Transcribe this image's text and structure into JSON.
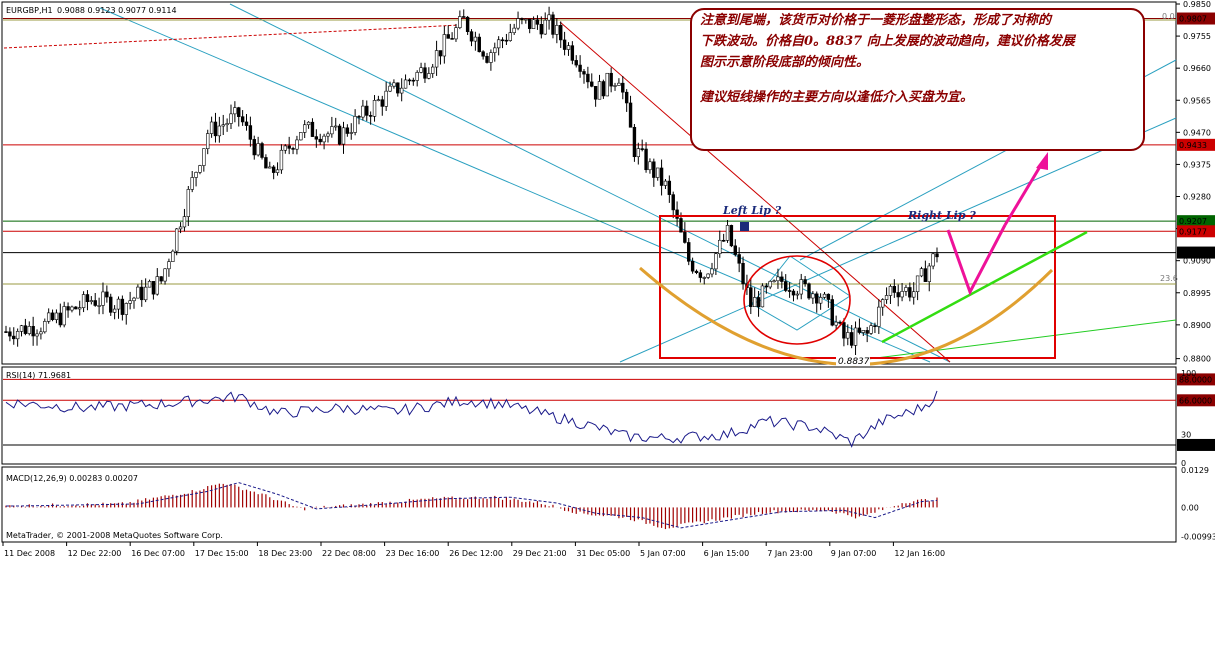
{
  "chart_data": [
    {
      "type": "candlestick",
      "symbol_title": "EURGBP,H1",
      "ohlc_header": "0.9088 0.9123 0.9077 0.9114",
      "x_labels": [
        "11 Dec 2008",
        "12 Dec 22:00",
        "16 Dec 07:00",
        "17 Dec 15:00",
        "18 Dec 23:00",
        "22 Dec 08:00",
        "23 Dec 16:00",
        "26 Dec 12:00",
        "29 Dec 21:00",
        "31 Dec 05:00",
        "5 Jan 07:00",
        "6 Jan 15:00",
        "7 Jan 23:00",
        "9 Jan 07:00",
        "12 Jan 16:00"
      ],
      "y_ticks": [
        "0.9850",
        "0.9755",
        "0.9660",
        "0.9565",
        "0.9470",
        "0.9375",
        "0.9280",
        "0.9185",
        "0.9090",
        "0.8995",
        "0.8900",
        "0.8800"
      ],
      "ylim": [
        0.879,
        0.985
      ],
      "price_key_points": [
        {
          "i": 0,
          "v": 0.888
        },
        {
          "i": 10,
          "v": 0.89
        },
        {
          "i": 22,
          "v": 0.8975
        },
        {
          "i": 30,
          "v": 0.896
        },
        {
          "i": 40,
          "v": 0.903
        },
        {
          "i": 52,
          "v": 0.947
        },
        {
          "i": 60,
          "v": 0.952
        },
        {
          "i": 68,
          "v": 0.934
        },
        {
          "i": 76,
          "v": 0.948
        },
        {
          "i": 86,
          "v": 0.946
        },
        {
          "i": 96,
          "v": 0.956
        },
        {
          "i": 108,
          "v": 0.966
        },
        {
          "i": 118,
          "v": 0.98
        },
        {
          "i": 124,
          "v": 0.97
        },
        {
          "i": 132,
          "v": 0.979
        },
        {
          "i": 140,
          "v": 0.979
        },
        {
          "i": 148,
          "v": 0.968
        },
        {
          "i": 152,
          "v": 0.959
        },
        {
          "i": 158,
          "v": 0.964
        },
        {
          "i": 162,
          "v": 0.942
        },
        {
          "i": 170,
          "v": 0.931
        },
        {
          "i": 176,
          "v": 0.909
        },
        {
          "i": 180,
          "v": 0.905
        },
        {
          "i": 186,
          "v": 0.917
        },
        {
          "i": 192,
          "v": 0.896
        },
        {
          "i": 200,
          "v": 0.903
        },
        {
          "i": 210,
          "v": 0.899
        },
        {
          "i": 216,
          "v": 0.886
        },
        {
          "i": 222,
          "v": 0.887
        },
        {
          "i": 228,
          "v": 0.901
        },
        {
          "i": 234,
          "v": 0.9
        },
        {
          "i": 240,
          "v": 0.9114
        }
      ],
      "hlines": [
        {
          "value": "0.9807",
          "color": "#8b0000"
        },
        {
          "value": "0.9433",
          "color": "#cc0000"
        },
        {
          "value": "0.9207",
          "color": "#006400"
        },
        {
          "value": "0.9177",
          "color": "#cc0000"
        },
        {
          "value": "0.9114",
          "color": "#000000"
        }
      ],
      "fib_labels": [
        "0.0",
        "23.6"
      ],
      "annotations": [
        "Left Lip  ?",
        "Right Lip  ?",
        "0.8837"
      ]
    },
    {
      "type": "line",
      "title": "RSI(14) 71.9681",
      "levels": [
        "88.0000",
        "66.0000",
        "19.0000"
      ],
      "y_ticks": [
        "100",
        "30",
        "0"
      ],
      "ylim": [
        0,
        100
      ],
      "key_points": [
        {
          "i": 0,
          "v": 64
        },
        {
          "i": 20,
          "v": 58
        },
        {
          "i": 40,
          "v": 62
        },
        {
          "i": 60,
          "v": 70
        },
        {
          "i": 70,
          "v": 52
        },
        {
          "i": 86,
          "v": 58
        },
        {
          "i": 100,
          "v": 54
        },
        {
          "i": 118,
          "v": 66
        },
        {
          "i": 128,
          "v": 62
        },
        {
          "i": 140,
          "v": 50
        },
        {
          "i": 150,
          "v": 40
        },
        {
          "i": 160,
          "v": 28
        },
        {
          "i": 170,
          "v": 26
        },
        {
          "i": 186,
          "v": 30
        },
        {
          "i": 196,
          "v": 44
        },
        {
          "i": 208,
          "v": 38
        },
        {
          "i": 218,
          "v": 22
        },
        {
          "i": 226,
          "v": 44
        },
        {
          "i": 236,
          "v": 58
        },
        {
          "i": 240,
          "v": 72
        }
      ]
    },
    {
      "type": "histogram",
      "title": "MACD(12,26,9) 0.00283 0.00207",
      "y_ticks": [
        "0.0129",
        "0.00",
        "-0.00993"
      ],
      "ylim": [
        -0.0115,
        0.0135
      ],
      "key_points": [
        {
          "i": 0,
          "v": 0.0005
        },
        {
          "i": 30,
          "v": 0.0012
        },
        {
          "i": 48,
          "v": 0.0055
        },
        {
          "i": 56,
          "v": 0.0085
        },
        {
          "i": 66,
          "v": 0.0045
        },
        {
          "i": 76,
          "v": -0.0005
        },
        {
          "i": 92,
          "v": 0.001
        },
        {
          "i": 110,
          "v": 0.003
        },
        {
          "i": 126,
          "v": 0.0035
        },
        {
          "i": 138,
          "v": 0.0015
        },
        {
          "i": 148,
          "v": -0.002
        },
        {
          "i": 160,
          "v": -0.0035
        },
        {
          "i": 170,
          "v": -0.007
        },
        {
          "i": 184,
          "v": -0.004
        },
        {
          "i": 196,
          "v": -0.0015
        },
        {
          "i": 212,
          "v": -0.001
        },
        {
          "i": 220,
          "v": -0.0035
        },
        {
          "i": 232,
          "v": 0.002
        },
        {
          "i": 240,
          "v": 0.0028
        }
      ]
    }
  ],
  "note": {
    "line1": "注意到尾端，该货币对价格于一菱形盘整形态，形成了对称的",
    "line2": "下跌波动。价格自0。8837 向上发展的波动趋向，建议价格发展",
    "line3": "图示示意阶段底部的倾向性。",
    "line4": "建议短线操作的主要方向以逢低介入买盘为宜。"
  },
  "footer": "MetaTrader, © 2001-2008 MetaQuotes Software Corp."
}
